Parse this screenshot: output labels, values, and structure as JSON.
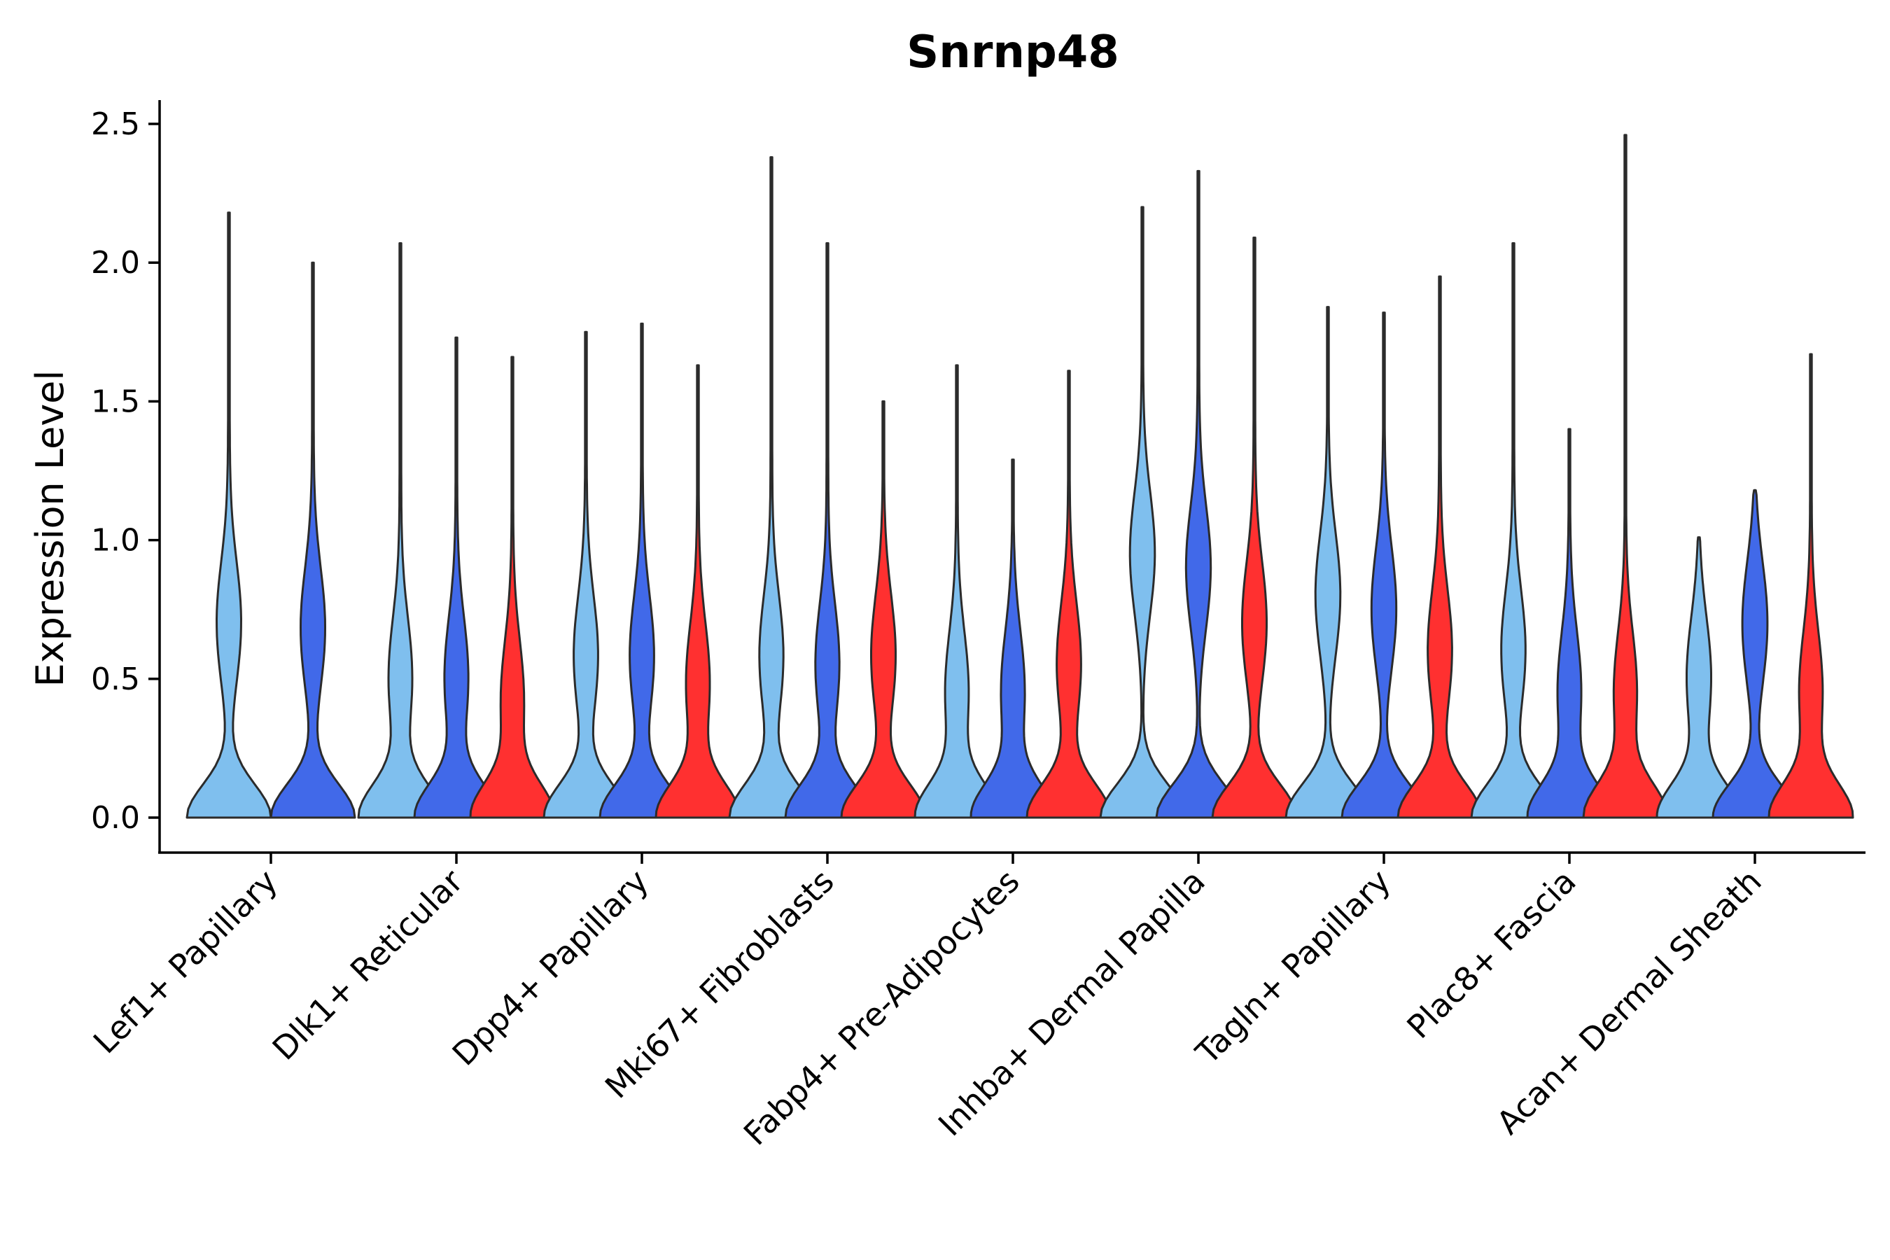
{
  "chart_data": {
    "type": "violin",
    "title": "Snrnp48",
    "xlabel": "",
    "ylabel": "Expression Level",
    "ylim": [
      -0.12,
      2.6
    ],
    "yticks": [
      0.0,
      0.5,
      1.0,
      1.5,
      2.0,
      2.5
    ],
    "ytick_labels": [
      "0.0",
      "0.5",
      "1.0",
      "1.5",
      "2.0",
      "2.5"
    ],
    "categories": [
      "Lef1+ Papillary",
      "Dlk1+ Reticular",
      "Dpp4+ Papillary",
      "Mki67+ Fibroblasts",
      "Fabp4+ Pre-Adipocytes",
      "Inhba+ Dermal Papilla",
      "Tagln+ Papillary",
      "Plac8+ Fascia",
      "Acan+ Dermal Sheath"
    ],
    "series_colors": [
      "#7fbfee",
      "#4169e9",
      "#ff3030"
    ],
    "violins": [
      {
        "category": "Lef1+ Papillary",
        "group": 0,
        "max": 2.18,
        "peak": 0.7
      },
      {
        "category": "Lef1+ Papillary",
        "group": 1,
        "max": 2.0,
        "peak": 0.68
      },
      {
        "category": "Dlk1+ Reticular",
        "group": 0,
        "max": 2.07,
        "peak": 0.5
      },
      {
        "category": "Dlk1+ Reticular",
        "group": 1,
        "max": 1.73,
        "peak": 0.5
      },
      {
        "category": "Dlk1+ Reticular",
        "group": 2,
        "max": 1.66,
        "peak": 0.42
      },
      {
        "category": "Dpp4+ Papillary",
        "group": 0,
        "max": 1.75,
        "peak": 0.58
      },
      {
        "category": "Dpp4+ Papillary",
        "group": 1,
        "max": 1.78,
        "peak": 0.58
      },
      {
        "category": "Dpp4+ Papillary",
        "group": 2,
        "max": 1.63,
        "peak": 0.48
      },
      {
        "category": "Mki67+ Fibroblasts",
        "group": 0,
        "max": 2.38,
        "peak": 0.58
      },
      {
        "category": "Mki67+ Fibroblasts",
        "group": 1,
        "max": 2.07,
        "peak": 0.55
      },
      {
        "category": "Mki67+ Fibroblasts",
        "group": 2,
        "max": 1.5,
        "peak": 0.58
      },
      {
        "category": "Fabp4+ Pre-Adipocytes",
        "group": 0,
        "max": 1.63,
        "peak": 0.45
      },
      {
        "category": "Fabp4+ Pre-Adipocytes",
        "group": 1,
        "max": 1.29,
        "peak": 0.45
      },
      {
        "category": "Fabp4+ Pre-Adipocytes",
        "group": 2,
        "max": 1.61,
        "peak": 0.55
      },
      {
        "category": "Inhba+ Dermal Papilla",
        "group": 0,
        "max": 2.2,
        "peak": 0.95
      },
      {
        "category": "Inhba+ Dermal Papilla",
        "group": 1,
        "max": 2.33,
        "peak": 0.9
      },
      {
        "category": "Inhba+ Dermal Papilla",
        "group": 2,
        "max": 2.09,
        "peak": 0.7
      },
      {
        "category": "Tagln+ Papillary",
        "group": 0,
        "max": 1.84,
        "peak": 0.8
      },
      {
        "category": "Tagln+ Papillary",
        "group": 1,
        "max": 1.82,
        "peak": 0.75
      },
      {
        "category": "Tagln+ Papillary",
        "group": 2,
        "max": 1.95,
        "peak": 0.6
      },
      {
        "category": "Plac8+ Fascia",
        "group": 0,
        "max": 2.07,
        "peak": 0.6
      },
      {
        "category": "Plac8+ Fascia",
        "group": 1,
        "max": 1.4,
        "peak": 0.45
      },
      {
        "category": "Plac8+ Fascia",
        "group": 2,
        "max": 2.46,
        "peak": 0.45
      },
      {
        "category": "Acan+ Dermal Sheath",
        "group": 0,
        "max": 1.01,
        "peak": 0.5
      },
      {
        "category": "Acan+ Dermal Sheath",
        "group": 1,
        "max": 1.18,
        "peak": 0.7
      },
      {
        "category": "Acan+ Dermal Sheath",
        "group": 2,
        "max": 1.67,
        "peak": 0.45
      }
    ]
  }
}
